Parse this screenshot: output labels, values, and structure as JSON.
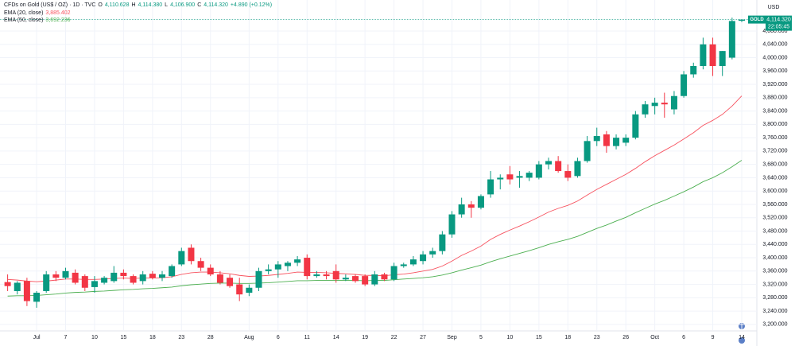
{
  "chart_data": {
    "type": "candlestick",
    "title": "CFDs on Gold (US$ / OZ) · 1D · TVC",
    "ohlc_labels": [
      {
        "key": "O",
        "text": "4,110.628"
      },
      {
        "key": "H",
        "text": "4,114.380"
      },
      {
        "key": "L",
        "text": "4,106.900"
      },
      {
        "key": "C",
        "text": "4,114.320"
      }
    ],
    "change_label": "+4.890 (+0.12%)",
    "categories": [
      null,
      null,
      null,
      "Jul",
      null,
      null,
      "7",
      null,
      null,
      "10",
      null,
      null,
      "15",
      null,
      null,
      "18",
      null,
      null,
      "23",
      null,
      null,
      "28",
      null,
      null,
      null,
      "Aug",
      null,
      null,
      "6",
      null,
      null,
      "11",
      null,
      null,
      "14",
      null,
      null,
      "19",
      null,
      null,
      "22",
      null,
      null,
      "27",
      null,
      null,
      "Sep",
      null,
      null,
      "5",
      null,
      null,
      "10",
      null,
      null,
      "15",
      null,
      null,
      "18",
      null,
      null,
      "23",
      null,
      null,
      "26",
      null,
      null,
      "Oct",
      null,
      null,
      "6",
      null,
      null,
      "9",
      null,
      null,
      "14"
    ],
    "open": [
      3327,
      3300,
      3330,
      3268,
      3300,
      3350,
      3340,
      3355,
      3345,
      3312,
      3325,
      3330,
      3355,
      3345,
      3330,
      3352,
      3340,
      3345,
      3380,
      3430,
      3390,
      3370,
      3350,
      3340,
      3320,
      3295,
      3310,
      3360,
      3365,
      3375,
      3385,
      3400,
      3345,
      3350,
      3360,
      3335,
      3345,
      3345,
      3320,
      3350,
      3335,
      3375,
      3380,
      3390,
      3410,
      3420,
      3470,
      3530,
      3560,
      3550,
      3590,
      3635,
      3650,
      3640,
      3640,
      3640,
      3680,
      3690,
      3660,
      3645,
      3690,
      3750,
      3770,
      3735,
      3745,
      3760,
      3830,
      3855,
      3865,
      3845,
      3885,
      3950,
      3975,
      4040,
      3975,
      4000,
      4110.628
    ],
    "high": [
      3350,
      3330,
      3340,
      3300,
      3360,
      3360,
      3370,
      3365,
      3350,
      3345,
      3345,
      3375,
      3365,
      3350,
      3360,
      3360,
      3360,
      3380,
      3430,
      3440,
      3400,
      3380,
      3360,
      3350,
      3340,
      3320,
      3370,
      3380,
      3390,
      3390,
      3405,
      3410,
      3360,
      3360,
      3380,
      3350,
      3350,
      3350,
      3360,
      3355,
      3385,
      3385,
      3405,
      3420,
      3430,
      3480,
      3540,
      3580,
      3570,
      3590,
      3660,
      3650,
      3675,
      3660,
      3660,
      3690,
      3700,
      3705,
      3680,
      3700,
      3765,
      3790,
      3780,
      3770,
      3770,
      3840,
      3870,
      3880,
      3895,
      3900,
      3960,
      3985,
      4060,
      4060,
      4020,
      4120,
      4114.38
    ],
    "low": [
      3300,
      3290,
      3255,
      3250,
      3295,
      3330,
      3335,
      3320,
      3300,
      3295,
      3320,
      3325,
      3335,
      3320,
      3320,
      3335,
      3330,
      3340,
      3375,
      3380,
      3360,
      3345,
      3320,
      3310,
      3270,
      3285,
      3300,
      3350,
      3340,
      3360,
      3375,
      3335,
      3340,
      3335,
      3325,
      3330,
      3325,
      3315,
      3315,
      3330,
      3330,
      3370,
      3375,
      3380,
      3400,
      3410,
      3460,
      3520,
      3520,
      3545,
      3580,
      3605,
      3620,
      3610,
      3630,
      3635,
      3665,
      3655,
      3630,
      3640,
      3685,
      3735,
      3715,
      3725,
      3735,
      3755,
      3820,
      3830,
      3820,
      3830,
      3880,
      3940,
      3965,
      3945,
      3945,
      3995,
      4106.9
    ],
    "close": [
      3315,
      3325,
      3270,
      3295,
      3350,
      3340,
      3360,
      3325,
      3310,
      3330,
      3340,
      3355,
      3345,
      3325,
      3350,
      3340,
      3350,
      3375,
      3420,
      3390,
      3370,
      3350,
      3325,
      3315,
      3290,
      3310,
      3360,
      3365,
      3380,
      3385,
      3395,
      3345,
      3350,
      3345,
      3335,
      3340,
      3330,
      3320,
      3350,
      3335,
      3375,
      3380,
      3395,
      3410,
      3420,
      3470,
      3530,
      3560,
      3550,
      3585,
      3635,
      3640,
      3635,
      3645,
      3655,
      3680,
      3690,
      3660,
      3640,
      3690,
      3750,
      3765,
      3735,
      3760,
      3760,
      3830,
      3860,
      3865,
      3860,
      3885,
      3950,
      3975,
      4040,
      3975,
      4020,
      4110,
      4114.32
    ],
    "up_color": "#089981",
    "down_color": "#f23645",
    "overlays": [
      {
        "name": "EMA (20, close)",
        "color": "#f7525f",
        "last_label": "3,885.402",
        "values": [
          3335,
          3333,
          3330,
          3328,
          3330,
          3333,
          3336,
          3336,
          3335,
          3335,
          3336,
          3338,
          3339,
          3338,
          3339,
          3339,
          3340,
          3343,
          3350,
          3355,
          3357,
          3357,
          3355,
          3352,
          3347,
          3344,
          3345,
          3347,
          3350,
          3353,
          3357,
          3356,
          3356,
          3355,
          3353,
          3352,
          3350,
          3347,
          3347,
          3346,
          3349,
          3351,
          3355,
          3360,
          3365,
          3375,
          3390,
          3407,
          3420,
          3435,
          3455,
          3470,
          3483,
          3495,
          3508,
          3522,
          3537,
          3548,
          3557,
          3570,
          3588,
          3605,
          3620,
          3635,
          3650,
          3668,
          3688,
          3706,
          3722,
          3738,
          3756,
          3775,
          3797,
          3812,
          3830,
          3855,
          3885.402
        ]
      },
      {
        "name": "EMA (50, close)",
        "color": "#4caf50",
        "last_label": "3,692.236",
        "values": [
          3285,
          3286,
          3286,
          3287,
          3289,
          3291,
          3294,
          3296,
          3297,
          3299,
          3300,
          3302,
          3304,
          3305,
          3307,
          3308,
          3310,
          3312,
          3316,
          3319,
          3321,
          3323,
          3324,
          3324,
          3323,
          3323,
          3324,
          3325,
          3327,
          3329,
          3331,
          3331,
          3332,
          3332,
          3332,
          3332,
          3332,
          3331,
          3332,
          3332,
          3334,
          3336,
          3338,
          3340,
          3343,
          3348,
          3355,
          3363,
          3370,
          3378,
          3388,
          3397,
          3405,
          3413,
          3421,
          3430,
          3440,
          3448,
          3455,
          3464,
          3476,
          3488,
          3498,
          3510,
          3521,
          3535,
          3548,
          3561,
          3572,
          3585,
          3598,
          3612,
          3628,
          3640,
          3655,
          3673,
          3692.236
        ]
      }
    ],
    "ylim": [
      3183,
      4173
    ],
    "yticks": [
      {
        "value": 3200,
        "label": "3,200.000"
      },
      {
        "value": 3240,
        "label": "3,240.000"
      },
      {
        "value": 3280,
        "label": "3,280.000"
      },
      {
        "value": 3320,
        "label": "3,320.000"
      },
      {
        "value": 3360,
        "label": "3,360.000"
      },
      {
        "value": 3400,
        "label": "3,400.000"
      },
      {
        "value": 3440,
        "label": "3,440.000"
      },
      {
        "value": 3480,
        "label": "3,480.000"
      },
      {
        "value": 3520,
        "label": "3,520.000"
      },
      {
        "value": 3560,
        "label": "3,560.000"
      },
      {
        "value": 3600,
        "label": "3,600.000"
      },
      {
        "value": 3640,
        "label": "3,640.000"
      },
      {
        "value": 3680,
        "label": "3,680.000"
      },
      {
        "value": 3720,
        "label": "3,720.000"
      },
      {
        "value": 3760,
        "label": "3,760.000"
      },
      {
        "value": 3800,
        "label": "3,800.000"
      },
      {
        "value": 3840,
        "label": "3,840.000"
      },
      {
        "value": 3880,
        "label": "3,880.000"
      },
      {
        "value": 3920,
        "label": "3,920.000"
      },
      {
        "value": 3960,
        "label": "3,960.000"
      },
      {
        "value": 4000,
        "label": "4,000.000"
      },
      {
        "value": 4040,
        "label": "4,040.000"
      },
      {
        "value": 4080,
        "label": "4,080.000"
      }
    ],
    "y_unit": "USD",
    "grid": true,
    "price_tag": {
      "symbol": "GOLD",
      "price": "4,114.320",
      "countdown": "22:05:45"
    }
  }
}
